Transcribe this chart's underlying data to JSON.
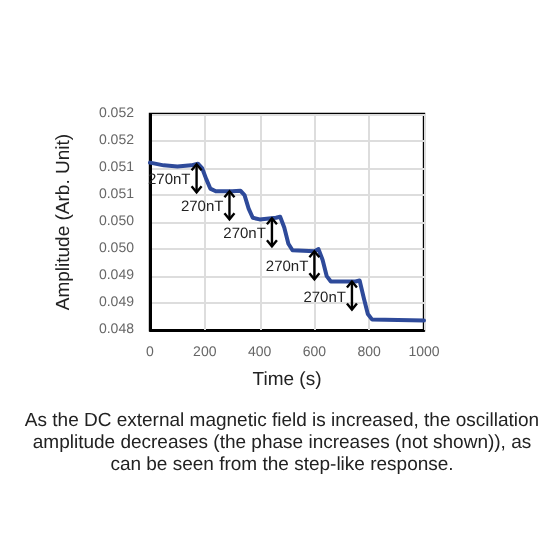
{
  "chart_data": {
    "type": "line",
    "xlabel": "Time (s)",
    "ylabel": "Amplitude (Arb. Unit)",
    "x": [
      0,
      50,
      100,
      150,
      175,
      190,
      205,
      220,
      240,
      300,
      330,
      345,
      360,
      375,
      400,
      460,
      475,
      490,
      505,
      520,
      600,
      615,
      630,
      645,
      660,
      750,
      765,
      780,
      795,
      810,
      1000
    ],
    "series": [
      {
        "color": "#2e4a9a",
        "values": [
          0.0511,
          0.05105,
          0.05103,
          0.05105,
          0.05108,
          0.051,
          0.0508,
          0.05062,
          0.05057,
          0.05057,
          0.05058,
          0.0505,
          0.05025,
          0.05008,
          0.05005,
          0.05008,
          0.0501,
          0.0499,
          0.0496,
          0.04948,
          0.04946,
          0.0495,
          0.0493,
          0.049,
          0.0489,
          0.0489,
          0.04892,
          0.0486,
          0.0483,
          0.0482,
          0.04818
        ]
      }
    ],
    "xlim": [
      0,
      1000
    ],
    "xticks": [
      0,
      200,
      400,
      600,
      800,
      1000
    ],
    "ylim": [
      0.048,
      0.052
    ],
    "yticks": [
      {
        "value": 0.048,
        "label": "0.048"
      },
      {
        "value": 0.0485,
        "label": "0.049"
      },
      {
        "value": 0.049,
        "label": "0.049"
      },
      {
        "value": 0.0495,
        "label": "0.050"
      },
      {
        "value": 0.05,
        "label": "0.050"
      },
      {
        "value": 0.0505,
        "label": "0.051"
      },
      {
        "value": 0.051,
        "label": "0.051"
      },
      {
        "value": 0.0515,
        "label": "0.052"
      },
      {
        "value": 0.052,
        "label": "0.052"
      }
    ],
    "grid": true,
    "marker": "none",
    "line_style": "solid",
    "annotations": [
      {
        "text": "270nT",
        "x": 170,
        "y": 0.05107
      },
      {
        "text": "270nT",
        "x": 290,
        "y": 0.05057
      },
      {
        "text": "270nT",
        "x": 445,
        "y": 0.05007
      },
      {
        "text": "270nT",
        "x": 600,
        "y": 0.04946
      },
      {
        "text": "270nT",
        "x": 737,
        "y": 0.0489
      },
      "As the DC external magnetic field is increased, the oscillation amplitude decreases (the phase increases (not shown)), as can be seen from the step-like response."
    ]
  }
}
